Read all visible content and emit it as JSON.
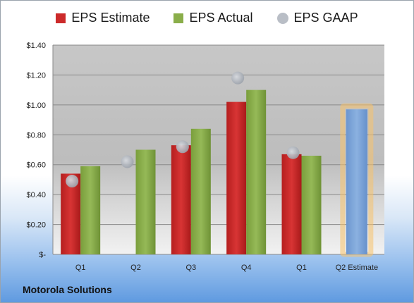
{
  "chart_data": {
    "type": "bar",
    "categories": [
      "Q1",
      "Q2",
      "Q3",
      "Q4",
      "Q1",
      "Q2 Estimate"
    ],
    "series": [
      {
        "name": "EPS Estimate",
        "color": "#cc2a2a",
        "values": [
          0.54,
          null,
          0.73,
          1.02,
          0.67,
          null
        ]
      },
      {
        "name": "EPS Actual",
        "color": "#8aae4a",
        "values": [
          0.59,
          0.7,
          0.84,
          1.1,
          0.66,
          null
        ]
      },
      {
        "name": "EPS GAAP",
        "color": "#b9bec6",
        "values": [
          0.49,
          0.62,
          0.72,
          1.18,
          0.68,
          null
        ]
      }
    ],
    "q2_estimate": {
      "value": 0.97,
      "color": "#7ea6d8",
      "glow": "#f7c26b"
    },
    "y_ticks": [
      "$-",
      "$0.20",
      "$0.40",
      "$0.60",
      "$0.80",
      "$1.00",
      "$1.20",
      "$1.40"
    ],
    "ylim": [
      0,
      1.4
    ],
    "grid": true,
    "legend_position": "top"
  },
  "footer": {
    "company": "Motorola Solutions"
  }
}
